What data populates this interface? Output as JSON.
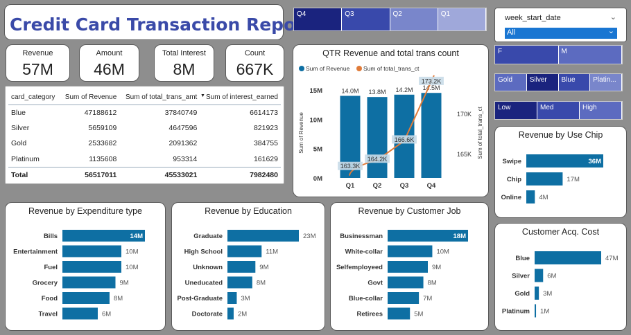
{
  "report_title": "Credit Card Transaction Report",
  "kpis": [
    {
      "label": "Revenue",
      "value": "57M"
    },
    {
      "label": "Amount",
      "value": "46M"
    },
    {
      "label": "Total Interest",
      "value": "8M"
    },
    {
      "label": "Count",
      "value": "667K"
    }
  ],
  "quarter_slicer": {
    "items": [
      "Q4",
      "Q3",
      "Q2",
      "Q1"
    ],
    "colors": [
      "#1a237e",
      "#3949ab",
      "#7986cb",
      "#9fa8da"
    ]
  },
  "week_slicer": {
    "label": "week_start_date",
    "selected": "All"
  },
  "gender_slicer": {
    "items": [
      "F",
      "M"
    ],
    "colors": [
      "#3949ab",
      "#5c6bc0"
    ]
  },
  "card_slicer": {
    "items": [
      "Gold",
      "Silver",
      "Blue",
      "Platin..."
    ],
    "colors": [
      "#5c6bc0",
      "#1a237e",
      "#3949ab",
      "#7986cb"
    ]
  },
  "income_slicer": {
    "items": [
      "Low",
      "Med",
      "High"
    ],
    "colors": [
      "#1a237e",
      "#3949ab",
      "#5c6bc0"
    ]
  },
  "table": {
    "columns": [
      "card_category",
      "Sum of Revenue",
      "Sum of total_trans_amt",
      "Sum of interest_earned"
    ],
    "rows": [
      [
        "Blue",
        "47188612",
        "37840749",
        "6614173"
      ],
      [
        "Silver",
        "5659109",
        "4647596",
        "821923"
      ],
      [
        "Gold",
        "2533682",
        "2091362",
        "384755"
      ],
      [
        "Platinum",
        "1135608",
        "953314",
        "161629"
      ]
    ],
    "total": [
      "Total",
      "56517011",
      "45533021",
      "7982480"
    ]
  },
  "qtr_chart": {
    "title": "QTR Revenue and total trans count",
    "legend": [
      "Sum of Revenue",
      "Sum of total_trans_ct"
    ],
    "ylabel_left": "Sum of Revenue",
    "ylabel_right": "Sum of total_trans_ct",
    "left_ticks": [
      "15M",
      "10M",
      "5M",
      "0M"
    ],
    "right_ticks": [
      "170K",
      "165K"
    ],
    "colors": {
      "bar": "#0e6fa3",
      "line": "#e07b39"
    }
  },
  "chart_data": [
    {
      "type": "bar",
      "title": "QTR Revenue and total trans count",
      "categories": [
        "Q1",
        "Q2",
        "Q3",
        "Q4"
      ],
      "series": [
        {
          "name": "Sum of Revenue",
          "values": [
            14.0,
            13.8,
            14.2,
            14.5
          ],
          "labels": [
            "14.0M",
            "13.8M",
            "14.2M",
            "14.5M"
          ]
        },
        {
          "name": "Sum of total_trans_ct",
          "values": [
            163.3,
            164.2,
            166.6,
            173.2
          ],
          "labels": [
            "163.3K",
            "164.2K",
            "166.6K",
            "173.2K"
          ]
        }
      ],
      "ylabel": "Sum of Revenue",
      "ylim": [
        0,
        15
      ]
    },
    {
      "type": "bar",
      "title": "Revenue by Use Chip",
      "categories": [
        "Swipe",
        "Chip",
        "Online"
      ],
      "values": [
        36,
        17,
        4
      ],
      "labels": [
        "36M",
        "17M",
        "4M"
      ]
    },
    {
      "type": "bar",
      "title": "Revenue by Expenditure type",
      "categories": [
        "Bills",
        "Entertainment",
        "Fuel",
        "Grocery",
        "Food",
        "Travel"
      ],
      "values": [
        14,
        10,
        10,
        9,
        8,
        6
      ],
      "labels": [
        "14M",
        "10M",
        "10M",
        "9M",
        "8M",
        "6M"
      ]
    },
    {
      "type": "bar",
      "title": "Revenue by Education",
      "categories": [
        "Graduate",
        "High School",
        "Unknown",
        "Uneducated",
        "Post-Graduate",
        "Doctorate"
      ],
      "values": [
        23,
        11,
        9,
        8,
        3,
        2
      ],
      "labels": [
        "23M",
        "11M",
        "9M",
        "8M",
        "3M",
        "2M"
      ]
    },
    {
      "type": "bar",
      "title": "Revenue by Customer Job",
      "categories": [
        "Businessman",
        "White-collar",
        "Selfemployeed",
        "Govt",
        "Blue-collar",
        "Retirees"
      ],
      "values": [
        18,
        10,
        9,
        8,
        7,
        5
      ],
      "labels": [
        "18M",
        "10M",
        "9M",
        "8M",
        "7M",
        "5M"
      ]
    },
    {
      "type": "bar",
      "title": "Customer Acq. Cost",
      "categories": [
        "Blue",
        "Silver",
        "Gold",
        "Platinum"
      ],
      "values": [
        47,
        6,
        3,
        1
      ],
      "labels": [
        "47M",
        "6M",
        "3M",
        "1M"
      ]
    }
  ],
  "bar_color": "#0e6fa3"
}
